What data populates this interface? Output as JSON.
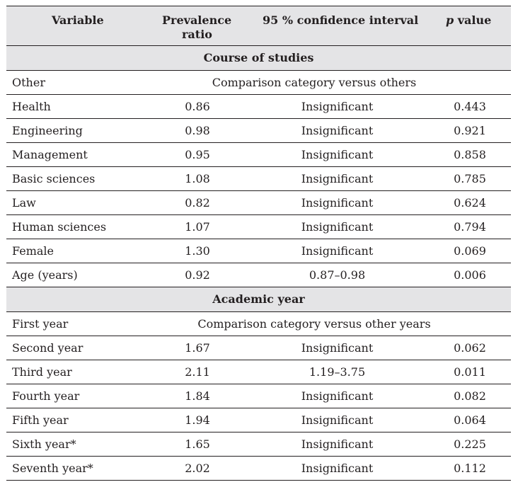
{
  "header": {
    "variable": "Variable",
    "ratio_line1": "Prevalence",
    "ratio_line2": "ratio",
    "ci": "95 % confidence interval",
    "p_italic": "p",
    "p_rest": " value"
  },
  "section1": {
    "title": "Course of studies",
    "reference_row": {
      "variable": "Other",
      "note": "Comparison category versus others"
    },
    "rows": [
      {
        "variable": "Health",
        "ratio": "0.86",
        "ci": "Insignificant",
        "p": "0.443"
      },
      {
        "variable": "Engineering",
        "ratio": "0.98",
        "ci": "Insignificant",
        "p": "0.921"
      },
      {
        "variable": "Management",
        "ratio": "0.95",
        "ci": "Insignificant",
        "p": "0.858"
      },
      {
        "variable": "Basic sciences",
        "ratio": "1.08",
        "ci": "Insignificant",
        "p": "0.785"
      },
      {
        "variable": "Law",
        "ratio": "0.82",
        "ci": "Insignificant",
        "p": "0.624"
      },
      {
        "variable": "Human sciences",
        "ratio": "1.07",
        "ci": "Insignificant",
        "p": "0.794"
      },
      {
        "variable": "Female",
        "ratio": "1.30",
        "ci": "Insignificant",
        "p": "0.069"
      },
      {
        "variable": "Age (years)",
        "ratio": "0.92",
        "ci": "0.87–0.98",
        "p": "0.006"
      }
    ]
  },
  "section2": {
    "title": "Academic year",
    "reference_row": {
      "variable": "First year",
      "note": "Comparison category versus other years"
    },
    "rows": [
      {
        "variable": "Second year",
        "ratio": "1.67",
        "ci": "Insignificant",
        "p": "0.062"
      },
      {
        "variable": "Third year",
        "ratio": "2.11",
        "ci": "1.19–3.75",
        "p": "0.011"
      },
      {
        "variable": "Fourth year",
        "ratio": "1.84",
        "ci": "Insignificant",
        "p": "0.082"
      },
      {
        "variable": "Fifth year",
        "ratio": "1.94",
        "ci": "Insignificant",
        "p": "0.064"
      },
      {
        "variable": "Sixth year*",
        "ratio": "1.65",
        "ci": "Insignificant",
        "p": "0.225"
      },
      {
        "variable": "Seventh year*",
        "ratio": "2.02",
        "ci": "Insignificant",
        "p": "0.112"
      }
    ]
  }
}
